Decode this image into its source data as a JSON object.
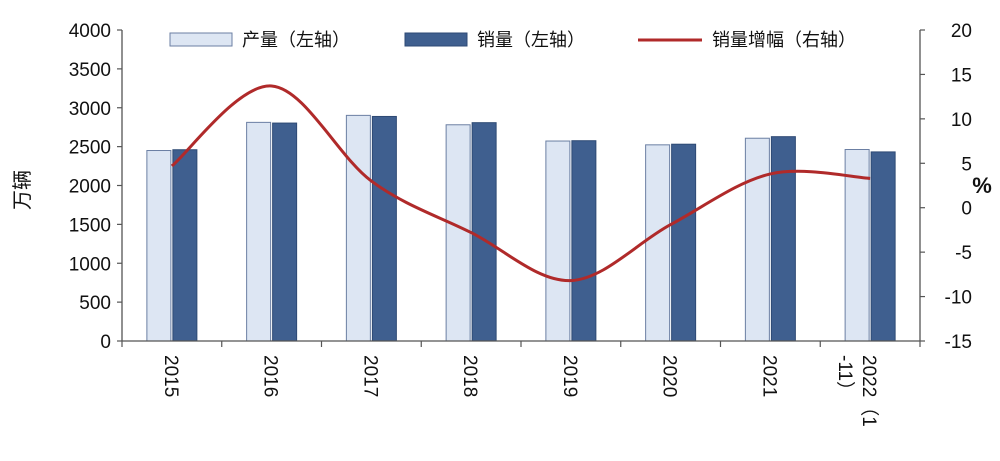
{
  "chart_data": {
    "type": "bar",
    "categories": [
      "2015",
      "2016",
      "2017",
      "2018",
      "2019",
      "2020",
      "2021",
      "2022（1-11）"
    ],
    "series": [
      {
        "name": "产量（左轴）",
        "type": "bar",
        "axis": "left",
        "color": "#dde6f3",
        "values": [
          2450,
          2812,
          2902,
          2781,
          2572,
          2523,
          2608,
          2463
        ]
      },
      {
        "name": "销量（左轴）",
        "type": "bar",
        "axis": "left",
        "color": "#3f5f8f",
        "values": [
          2460,
          2803,
          2888,
          2808,
          2576,
          2531,
          2628,
          2432
        ]
      },
      {
        "name": "销量增幅（右轴）",
        "type": "line",
        "axis": "right",
        "color": "#b02a2a",
        "values": [
          4.7,
          13.7,
          3.0,
          -2.8,
          -8.2,
          -1.9,
          3.8,
          3.3
        ]
      }
    ],
    "ylabel": "万辆",
    "y2label": "%",
    "ylim": [
      0,
      4000
    ],
    "y2lim": [
      -15,
      20
    ],
    "yticks": [
      "0",
      "500",
      "1000",
      "1500",
      "2000",
      "2500",
      "3000",
      "3500",
      "4000"
    ],
    "y2ticks": [
      "-15",
      "-10",
      "-5",
      "0",
      "5",
      "10",
      "15",
      "20"
    ],
    "legend_position": "top",
    "grid": false
  }
}
